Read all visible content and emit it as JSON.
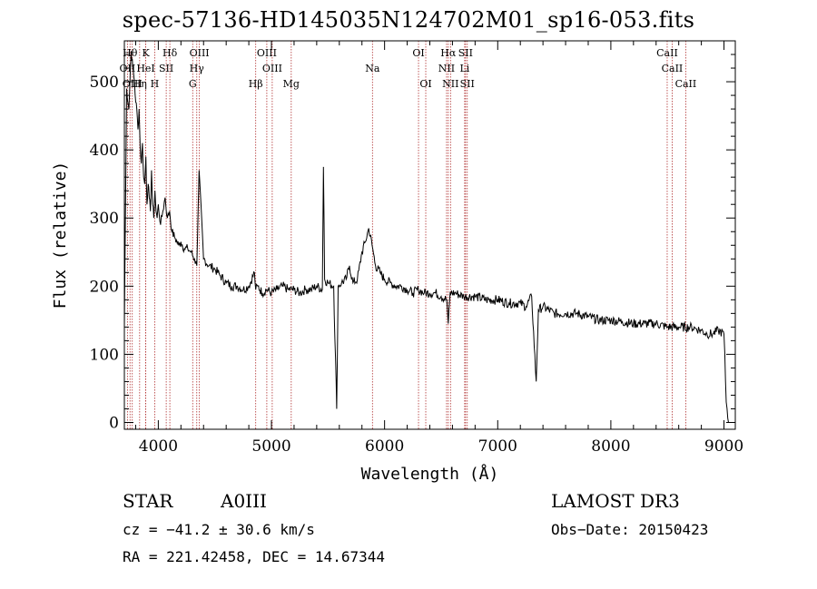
{
  "chart_data": {
    "type": "line",
    "title": "spec-57136-HD145035N124702M01_sp16-053.fits",
    "xlabel": "Wavelength (Å)",
    "ylabel": "Flux (relative)",
    "xlim": [
      3700,
      9100
    ],
    "ylim": [
      -10,
      560
    ],
    "xticks": [
      4000,
      5000,
      6000,
      7000,
      8000,
      9000
    ],
    "yticks": [
      0,
      100,
      200,
      300,
      400,
      500
    ],
    "grid": false,
    "series": [
      {
        "x": [
          3700,
          3720,
          3740,
          3760,
          3775,
          3790,
          3800,
          3810,
          3820,
          3830,
          3840,
          3850,
          3860,
          3870,
          3880,
          3890,
          3900,
          3910,
          3920,
          3930,
          3940,
          3950,
          3960,
          3970,
          3980,
          3990,
          4000,
          4020,
          4040,
          4060,
          4080,
          4100,
          4120,
          4150,
          4180,
          4200,
          4230,
          4260,
          4290,
          4320,
          4340,
          4360,
          4400,
          4450,
          4500,
          4550,
          4600,
          4650,
          4700,
          4750,
          4800,
          4850,
          4861,
          4880,
          4920,
          4960,
          5000,
          5050,
          5100,
          5150,
          5200,
          5250,
          5300,
          5350,
          5400,
          5450,
          5460,
          5470,
          5500,
          5550,
          5577,
          5590,
          5620,
          5660,
          5690,
          5720,
          5760,
          5800,
          5830,
          5860,
          5890,
          5920,
          5960,
          6000,
          6050,
          6100,
          6150,
          6200,
          6250,
          6300,
          6350,
          6400,
          6450,
          6500,
          6550,
          6563,
          6580,
          6620,
          6700,
          6800,
          6900,
          7000,
          7100,
          7200,
          7250,
          7300,
          7340,
          7360,
          7400,
          7500,
          7600,
          7700,
          7800,
          7900,
          8000,
          8100,
          8200,
          8300,
          8400,
          8500,
          8600,
          8700,
          8750,
          8800,
          8850,
          8900,
          8950,
          9000,
          9020,
          9040
        ],
        "y": [
          140,
          490,
          460,
          545,
          520,
          500,
          470,
          460,
          430,
          460,
          405,
          380,
          410,
          360,
          350,
          390,
          320,
          350,
          330,
          310,
          370,
          320,
          300,
          340,
          310,
          300,
          320,
          290,
          310,
          330,
          300,
          310,
          280,
          270,
          260,
          265,
          255,
          255,
          250,
          240,
          230,
          370,
          240,
          230,
          225,
          215,
          205,
          200,
          200,
          195,
          200,
          220,
          195,
          200,
          190,
          195,
          190,
          195,
          200,
          195,
          195,
          190,
          195,
          195,
          200,
          195,
          375,
          210,
          205,
          200,
          20,
          200,
          205,
          210,
          230,
          205,
          210,
          250,
          265,
          285,
          260,
          230,
          220,
          210,
          205,
          200,
          200,
          195,
          190,
          195,
          190,
          190,
          190,
          185,
          180,
          145,
          190,
          190,
          185,
          185,
          180,
          180,
          175,
          175,
          170,
          185,
          60,
          165,
          170,
          160,
          160,
          160,
          155,
          150,
          150,
          148,
          145,
          145,
          145,
          140,
          140,
          140,
          138,
          135,
          130,
          130,
          135,
          130,
          30,
          0
        ]
      }
    ],
    "lines_top": [
      {
        "wl": 3750,
        "label": "Hθ",
        "row": 1
      },
      {
        "wl": 3727,
        "label": "OII",
        "row": 2
      },
      {
        "wl": 3770,
        "label": "OIII",
        "row": 3
      },
      {
        "wl": 3889,
        "label": "K",
        "row": 1
      },
      {
        "wl": 3889,
        "label": "HeI",
        "row": 2
      },
      {
        "wl": 3835,
        "label": "Hη",
        "row": 3
      },
      {
        "wl": 3968,
        "label": "H",
        "row": 3
      },
      {
        "wl": 4070,
        "label": "SII",
        "row": 2
      },
      {
        "wl": 4102,
        "label": "Hδ",
        "row": 1
      },
      {
        "wl": 4363,
        "label": "OIII",
        "row": 1
      },
      {
        "wl": 4340,
        "label": "Hγ",
        "row": 2
      },
      {
        "wl": 4304,
        "label": "G",
        "row": 3
      },
      {
        "wl": 4861,
        "label": "Hβ",
        "row": 3
      },
      {
        "wl": 4959,
        "label": "OIII",
        "row": 1
      },
      {
        "wl": 5007,
        "label": "OIII",
        "row": 2
      },
      {
        "wl": 5175,
        "label": "Mg",
        "row": 3
      },
      {
        "wl": 5893,
        "label": "Na",
        "row": 2
      },
      {
        "wl": 6300,
        "label": "OI",
        "row": 1
      },
      {
        "wl": 6364,
        "label": "OI",
        "row": 3
      },
      {
        "wl": 6563,
        "label": "Hα",
        "row": 1
      },
      {
        "wl": 6548,
        "label": "NII",
        "row": 2
      },
      {
        "wl": 6583,
        "label": "NII",
        "row": 3
      },
      {
        "wl": 6716,
        "label": "SII",
        "row": 1
      },
      {
        "wl": 6708,
        "label": "Li",
        "row": 2
      },
      {
        "wl": 6731,
        "label": "SII",
        "row": 3
      },
      {
        "wl": 8498,
        "label": "CaII",
        "row": 1
      },
      {
        "wl": 8542,
        "label": "CaII",
        "row": 2
      },
      {
        "wl": 8662,
        "label": "CaII",
        "row": 3
      }
    ]
  },
  "info": {
    "class": "STAR",
    "subclass": "A0III",
    "survey": "LAMOST DR3",
    "cz": "cz = −41.2 ± 30.6 km/s",
    "obs_date": "Obs−Date: 20150423",
    "coords": "RA = 221.42458, DEC =  14.67344"
  }
}
